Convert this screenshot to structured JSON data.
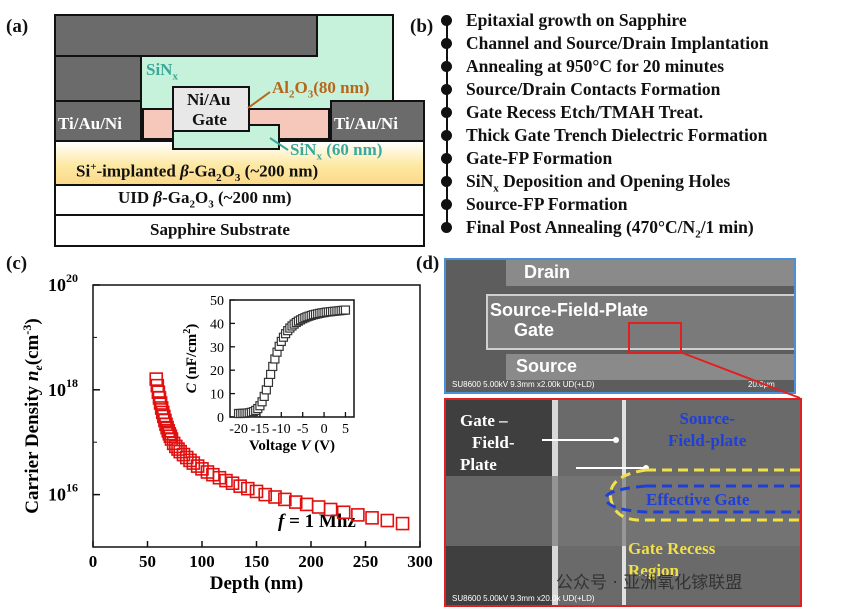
{
  "panels": {
    "a": "(a)",
    "b": "(b)",
    "c": "(c)",
    "d": "(d)"
  },
  "device": {
    "sinx_top": "SiN",
    "sinx_sub": "x",
    "gate_l1": "Ni/Au",
    "gate_l2": "Gate",
    "al2o3_main": "Al",
    "al2o3_sub1": "2",
    "al2o3_o": "O",
    "al2o3_sub2": "3",
    "al2o3_rest": "(80 nm)",
    "sinx60_main": "SiN",
    "sinx60_sub": "x",
    "sinx60_rest": " (60 nm)",
    "contact_left": "Ti/Au/Ni",
    "contact_right": "Ti/Au/Ni",
    "implant_pre": "Si",
    "implant_sup": "+",
    "implant_mid": "-implanted ",
    "implant_beta": "β",
    "implant_ga": "-Ga",
    "implant_s1": "2",
    "implant_o": "O",
    "implant_s2": "3",
    "implant_rest": " (~200 nm)",
    "uid_pre": "UID  ",
    "uid_beta": "β",
    "uid_ga": "-Ga",
    "uid_s1": "2",
    "uid_o": "O",
    "uid_s2": "3",
    "uid_rest": " (~200 nm)",
    "substrate": "Sapphire Substrate"
  },
  "process_steps": [
    "Epitaxial growth on Sapphire",
    "Channel and Source/Drain Implantation",
    "Annealing at 950°C for 20 minutes",
    "Source/Drain Contacts Formation",
    "Gate Recess Etch/TMAH Treat.",
    "Thick Gate Trench Dielectric Formation",
    "Gate-FP Formation",
    "SiN",
    "Source-FP Formation",
    "Final Post Annealing (470°C/N"
  ],
  "step8_sub": "x",
  "step8_rest": " Deposition and Opening Holes",
  "step10_sub": "2",
  "step10_rest": "/1 min)",
  "chart_data": [
    {
      "type": "scatter",
      "ylabel_main": "Carrier Density ",
      "ylabel_var": "n",
      "ylabel_sub": "e",
      "ylabel_unit": "(cm",
      "ylabel_sup": "-3",
      "ylabel_close": ")",
      "xlabel": "Depth (nm)",
      "annotation_var": "f",
      "annotation_rest": " = 1 Mhz",
      "xlim": [
        0,
        300
      ],
      "ylim_log10": [
        15,
        20
      ],
      "x_ticks": [
        "0",
        "50",
        "100",
        "150",
        "200",
        "250",
        "300"
      ],
      "y_ticks": [
        {
          "base": "10",
          "exp": "20",
          "v": 20
        },
        {
          "base": "10",
          "exp": "18",
          "v": 18
        },
        {
          "base": "10",
          "exp": "16",
          "v": 16
        }
      ],
      "marker_color": "#e01010",
      "x": [
        58,
        59,
        60,
        61,
        62,
        63,
        64,
        65,
        66,
        67,
        68,
        69,
        70,
        71,
        72,
        74,
        76,
        78,
        80,
        83,
        86,
        89,
        92,
        96,
        100,
        105,
        110,
        116,
        122,
        128,
        135,
        142,
        150,
        158,
        167,
        176,
        186,
        196,
        207,
        218,
        230,
        243,
        256,
        270,
        284
      ],
      "y": [
        1.6e+18,
        1.2e+18,
        9e+17,
        7e+17,
        5.6e+17,
        4.5e+17,
        3.7e+17,
        3.1e+17,
        2.6e+17,
        2.2e+17,
        1.9e+17,
        1.65e+17,
        1.45e+17,
        1.3e+17,
        1.15e+17,
        9.5e+16,
        8.3e+16,
        7.4e+16,
        6.6e+16,
        5.8e+16,
        5.1e+16,
        4.5e+16,
        4e+16,
        3.5e+16,
        3.1e+16,
        2.7e+16,
        2.4e+16,
        2.1e+16,
        1.85e+16,
        1.65e+16,
        1.45e+16,
        1.3e+16,
        1.15e+16,
        1e+16,
        9000000000000000.0,
        8100000000000000.0,
        7200000000000000.0,
        6500000000000000.0,
        5800000000000000.0,
        5200000000000000.0,
        4600000000000000.0,
        4100000000000000.0,
        3600000000000000.0,
        3200000000000000.0,
        2800000000000000.0
      ]
    },
    {
      "type": "scatter",
      "ylabel_var": "C",
      "ylabel_unit": " (nF/cm",
      "ylabel_sup": "2",
      "ylabel_close": ")",
      "xlabel_main": "Voltage ",
      "xlabel_var": "V",
      "xlabel_unit": " (V)",
      "xlim": [
        -22,
        7
      ],
      "ylim": [
        0,
        50
      ],
      "x_ticks": [
        "-20",
        "-15",
        "-10",
        "-5",
        "0",
        "5"
      ],
      "y_ticks": [
        "0",
        "10",
        "20",
        "30",
        "40",
        "50"
      ],
      "marker_color": "#333333",
      "x": [
        -20,
        -19.5,
        -19,
        -18.5,
        -18,
        -17.5,
        -17,
        -16.5,
        -16,
        -15.5,
        -15,
        -14.5,
        -14,
        -13.5,
        -13,
        -12.5,
        -12,
        -11.5,
        -11,
        -10.5,
        -10,
        -9.5,
        -9,
        -8.5,
        -8,
        -7.5,
        -7,
        -6.5,
        -6,
        -5.5,
        -5,
        -4.5,
        -4,
        -3.5,
        -3,
        -2.5,
        -2,
        -1.5,
        -1,
        -0.5,
        0,
        0.5,
        1,
        1.5,
        2,
        2.5,
        3,
        3.5,
        4,
        4.5,
        5
      ],
      "y": [
        1.5,
        1.5,
        1.6,
        1.6,
        1.7,
        1.8,
        2.0,
        2.3,
        2.8,
        3.6,
        4.8,
        6.5,
        8.8,
        11.6,
        14.8,
        18.2,
        21.6,
        24.8,
        27.7,
        30.2,
        32.3,
        34.1,
        35.6,
        36.9,
        38.0,
        38.9,
        39.7,
        40.4,
        41.0,
        41.5,
        42.0,
        42.4,
        42.8,
        43.1,
        43.4,
        43.7,
        43.9,
        44.1,
        44.3,
        44.5,
        44.6,
        44.8,
        44.9,
        45.0,
        45.1,
        45.2,
        45.3,
        45.4,
        45.5,
        45.6,
        45.7
      ]
    }
  ],
  "sem": {
    "drain": "Drain",
    "source_fp": "Source-Field-Plate",
    "gate": "Gate",
    "source": "Source",
    "footer_top": "SU8600 5.00kV 9.3mm x2.00k UD(+LD)",
    "scale_top": "20.0μm",
    "zoom_gate_fp_1": "Gate –",
    "zoom_gate_fp_2": "Field-",
    "zoom_gate_fp_3": "Plate",
    "zoom_source_fp_1": "Source-",
    "zoom_source_fp_2": "Field-plate",
    "zoom_effective_gate": "Effective Gate",
    "zoom_recess_1": "Gate Recess",
    "zoom_recess_2": "Region",
    "footer_bottom": "SU8600 5.00kV 9.3mm x20.0k UD(+LD)"
  },
  "watermark": "公众号 · 亚洲氧化镓联盟",
  "colors": {
    "metal_gray": "#6b6b6b",
    "sinx_green": "#c6f1da",
    "al2o3_pink": "#f6c8bc",
    "implant_yellow": "#fde9a3",
    "sinx_label": "#3aa89a",
    "al2o3_label": "#b8661a",
    "sem_blue_border": "#4a8fd8",
    "sem_red_border": "#e02020",
    "fp_blue": "#1f3fd8",
    "recess_yellow": "#f0e04a"
  }
}
